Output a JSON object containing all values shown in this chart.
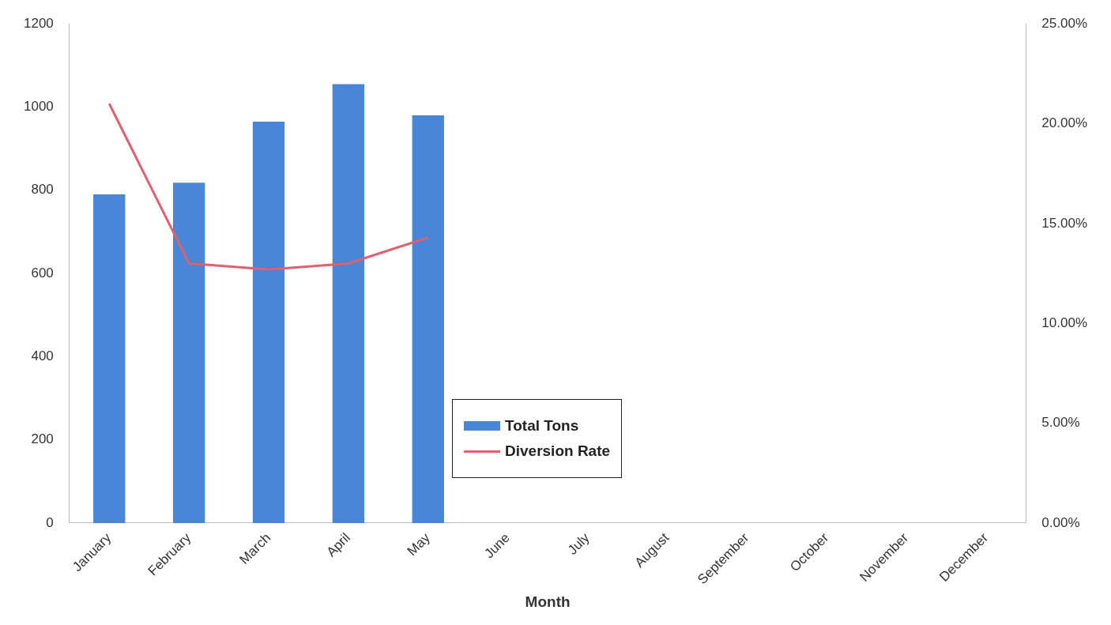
{
  "chart_data": {
    "type": "bar",
    "xlabel": "Month",
    "categories": [
      "January",
      "February",
      "March",
      "April",
      "May",
      "June",
      "July",
      "August",
      "September",
      "October",
      "November",
      "December"
    ],
    "series": [
      {
        "name": "Total Tons",
        "color": "#4a86d8",
        "values": [
          790,
          818,
          965,
          1055,
          980,
          null,
          null,
          null,
          null,
          null,
          null,
          null
        ]
      },
      {
        "name": "Diversion Rate",
        "type": "line",
        "axis": "y2",
        "color": "#e06070",
        "values": [
          21.0,
          13.0,
          12.7,
          13.0,
          14.3,
          null,
          null,
          null,
          null,
          null,
          null,
          null
        ]
      }
    ],
    "ylim": [
      0,
      1200
    ],
    "yticks": [
      0,
      200,
      400,
      600,
      800,
      1000,
      1200
    ],
    "y2lim": [
      0,
      25
    ],
    "y2ticks": [
      {
        "value": 0,
        "label": "0.00%"
      },
      {
        "value": 5,
        "label": "5.00%"
      },
      {
        "value": 10,
        "label": "10.00%"
      },
      {
        "value": 15,
        "label": "15.00%"
      },
      {
        "value": 20,
        "label": "20.00%"
      },
      {
        "value": 25,
        "label": "25.00%"
      }
    ],
    "grid": false,
    "legend": "bottom",
    "marker": "none"
  }
}
